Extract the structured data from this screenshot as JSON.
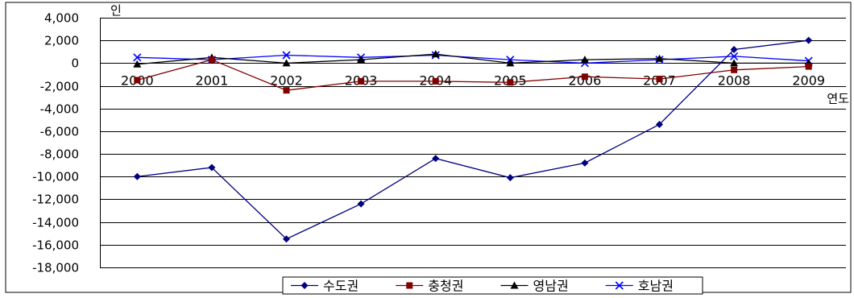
{
  "chart_data": {
    "type": "line",
    "y_unit": "인",
    "xlabel": "연도",
    "categories": [
      "2000",
      "2001",
      "2002",
      "2003",
      "2004",
      "2005",
      "2006",
      "2007",
      "2008",
      "2009"
    ],
    "ylim": [
      -18000,
      4000
    ],
    "yticks": [
      4000,
      2000,
      0,
      -2000,
      -4000,
      -6000,
      -8000,
      -10000,
      -12000,
      -14000,
      -16000,
      -18000
    ],
    "ytick_labels": [
      "4,000",
      "2,000",
      "0",
      "-2,000",
      "-4,000",
      "-6,000",
      "-8,000",
      "-10,000",
      "-12,000",
      "-14,000",
      "-16,000",
      "-18,000"
    ],
    "grid": true,
    "legend_position": "bottom",
    "series": [
      {
        "name": "수도권",
        "color": "#000080",
        "marker": "diamond",
        "values": [
          -10000,
          -9200,
          -15500,
          -12400,
          -8400,
          -10100,
          -8800,
          -5400,
          1200,
          2000
        ]
      },
      {
        "name": "충청권",
        "color": "#800000",
        "marker": "square",
        "values": [
          -1500,
          300,
          -2400,
          -1600,
          -1600,
          -1700,
          -1200,
          -1400,
          -600,
          -300
        ]
      },
      {
        "name": "영남권",
        "color": "#000000",
        "marker": "triangle",
        "values": [
          -100,
          500,
          0,
          300,
          800,
          0,
          300,
          400,
          0,
          0
        ]
      },
      {
        "name": "호남권",
        "color": "#0000ff",
        "marker": "x",
        "values": [
          500,
          300,
          700,
          500,
          700,
          300,
          0,
          300,
          600,
          200
        ]
      }
    ]
  }
}
